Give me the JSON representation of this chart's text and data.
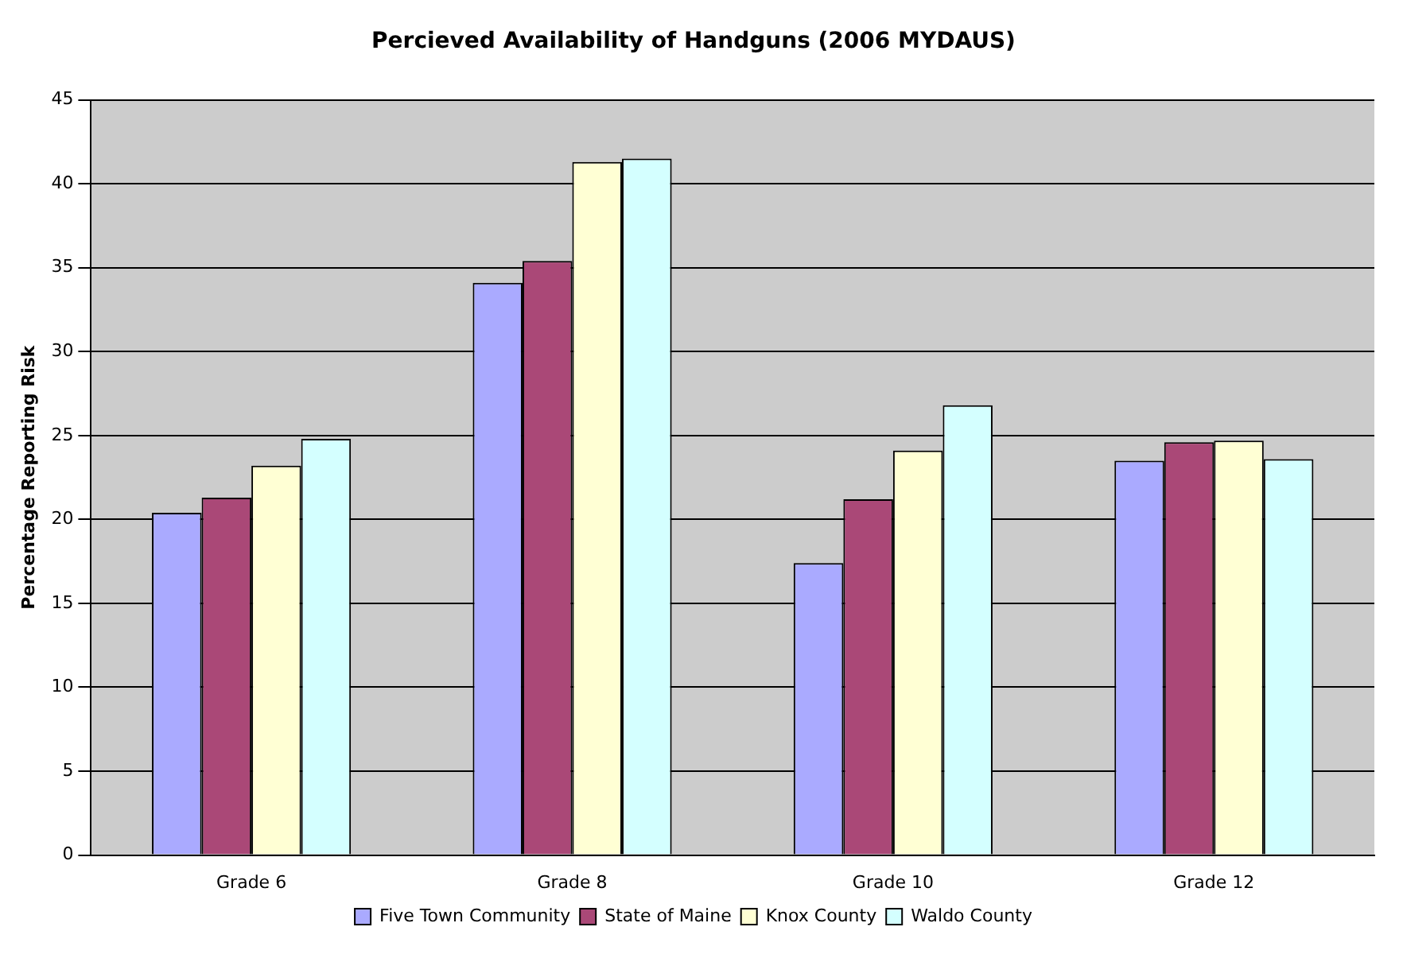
{
  "chart_data": {
    "type": "bar",
    "title": "Percieved Availability of Handguns (2006 MYDAUS)",
    "ylabel": "Percentage Reporting Risk",
    "categories": [
      "Grade 6",
      "Grade 8",
      "Grade 10",
      "Grade 12"
    ],
    "series": [
      {
        "name": "Five Town Community",
        "color": "#aaaaff",
        "values": [
          20.4,
          34.1,
          17.4,
          23.5
        ]
      },
      {
        "name": "State of Maine",
        "color": "#aa4877",
        "values": [
          21.3,
          35.4,
          21.2,
          24.6
        ]
      },
      {
        "name": "Knox County",
        "color": "#ffffd4",
        "values": [
          23.2,
          41.3,
          24.1,
          24.7
        ]
      },
      {
        "name": "Waldo County",
        "color": "#d4ffff",
        "values": [
          24.8,
          41.5,
          26.8,
          23.6
        ]
      }
    ],
    "ylim": [
      0,
      45
    ],
    "yticks": [
      0,
      5,
      10,
      15,
      20,
      25,
      30,
      35,
      40,
      45
    ],
    "grid": "y",
    "legend": "bottom"
  }
}
